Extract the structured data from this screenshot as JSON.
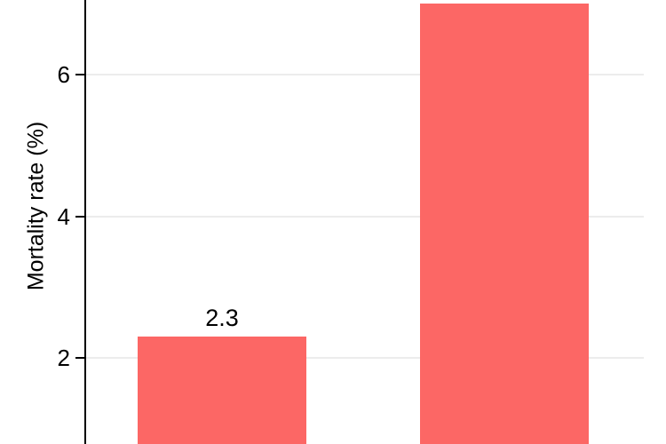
{
  "chart_data": {
    "type": "bar",
    "title": "",
    "xlabel": "",
    "ylabel": "Mortality rate (%)",
    "categories": [
      "",
      ""
    ],
    "values": [
      2.3,
      7.0
    ],
    "bar_labels": [
      "2.3",
      null
    ],
    "yticks": [
      2,
      4,
      6
    ],
    "ylim_visible": [
      0.78,
      7.06
    ],
    "grid": "horizontal-only",
    "legend": "none",
    "bar_color": "#FC6765",
    "gridline_color": "#ECECEC",
    "axis_color": "#000000",
    "text_color": "#000000"
  }
}
